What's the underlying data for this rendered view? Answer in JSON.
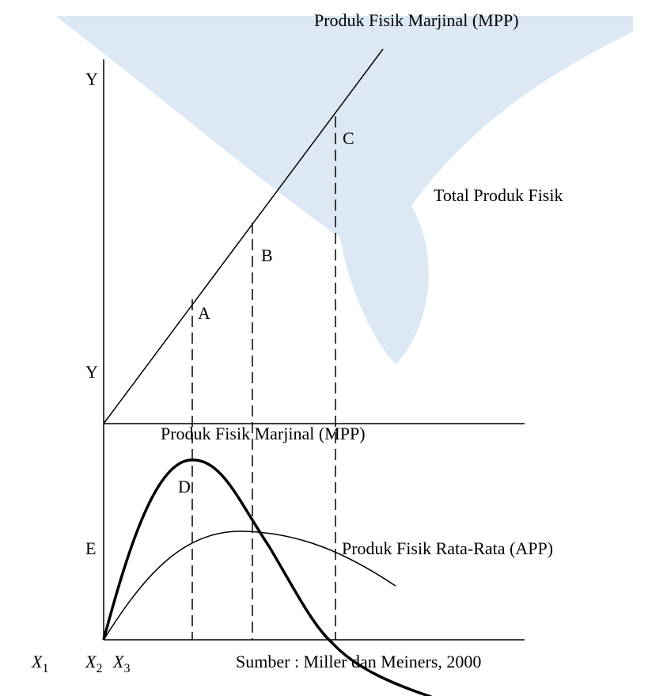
{
  "labels": {
    "top_mpp": "Produk Fisik Marjinal (MPP)",
    "y_top": "Y",
    "c": "C",
    "tpp": "Total Produk Fisik",
    "b": "B",
    "a": "A",
    "y_mid": "Y",
    "mid_mpp": "Produk Fisik Marjinal (MPP)",
    "d": "D",
    "e": "E",
    "app": "Produk Fisik Rata-Rata (APP)",
    "source": "Sumber : Miller dan Meiners, 2000"
  },
  "x_labels": [
    {
      "base": "X",
      "sub": "1"
    },
    {
      "base": "X",
      "sub": "2"
    },
    {
      "base": "X",
      "sub": "3"
    }
  ]
}
